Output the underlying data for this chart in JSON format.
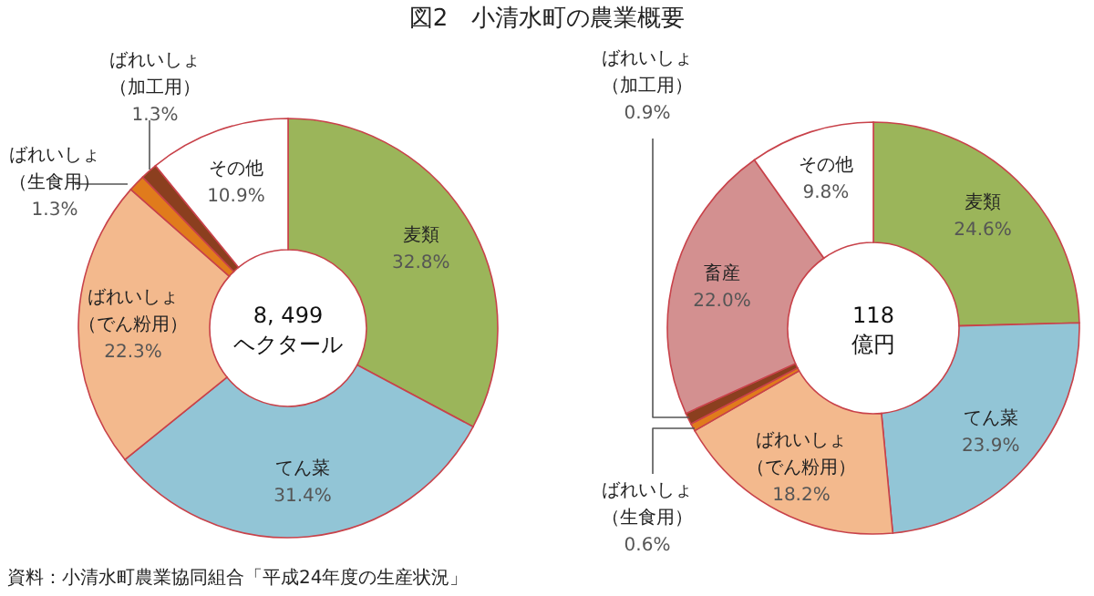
{
  "chart_data": [
    {
      "type": "donut",
      "title": "図2　小清水町の農業概要",
      "categories": [
        "麦類",
        "てん菜",
        "ばれいしょ（でん粉用）",
        "ばれいしょ（生食用）",
        "ばれいしょ（加工用）",
        "その他"
      ],
      "values": [
        32.8,
        31.4,
        22.3,
        1.3,
        1.3,
        10.9
      ],
      "value_labels": [
        "32.8%",
        "31.4%",
        "22.3%",
        "1.3%",
        "1.3%",
        "10.9%"
      ],
      "colors": [
        "#9bb55a",
        "#92c5d6",
        "#f3b98d",
        "#e07b1c",
        "#8b3f1f",
        "#ffffff"
      ],
      "annotations": [
        "8, 499ヘクタール",
        "資料：小清水町農業協同組合「平成24年度の生産状況」"
      ]
    },
    {
      "type": "donut",
      "categories": [
        "麦類",
        "てん菜",
        "ばれいしょ（でん粉用）",
        "ばれいしょ（生食用）",
        "ばれいしょ（加工用）",
        "畜産",
        "その他"
      ],
      "values": [
        24.6,
        23.9,
        18.2,
        0.6,
        0.9,
        22.0,
        9.8
      ],
      "value_labels": [
        "24.6%",
        "23.9%",
        "18.2%",
        "0.6%",
        "0.9%",
        "22.0%",
        "9.8%"
      ],
      "colors": [
        "#9bb55a",
        "#92c5d6",
        "#f3b98d",
        "#e07b1c",
        "#8b3f1f",
        "#d39090",
        "#ffffff"
      ],
      "annotations": [
        "118億円"
      ]
    }
  ]
}
